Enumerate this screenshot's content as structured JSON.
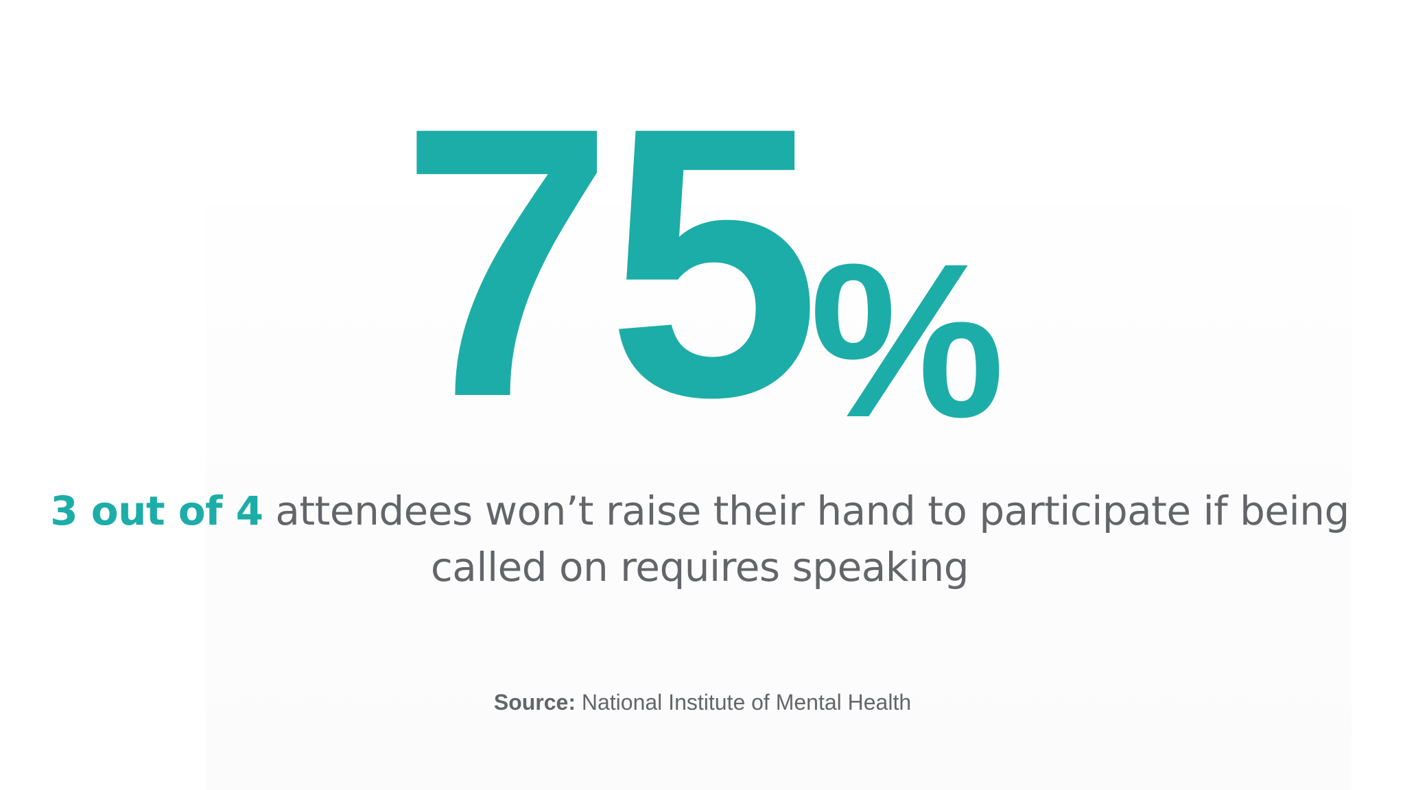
{
  "stat": {
    "number": "75",
    "unit": "%"
  },
  "statement": {
    "highlight": "3 out of 4",
    "text": " attendees won’t raise their hand to participate if being called on requires speaking"
  },
  "source": {
    "label": "Source:",
    "text": " National Institute of Mental Health"
  },
  "colors": {
    "accent": "#1dada8",
    "text": "#636569",
    "background": "#ffffff"
  }
}
